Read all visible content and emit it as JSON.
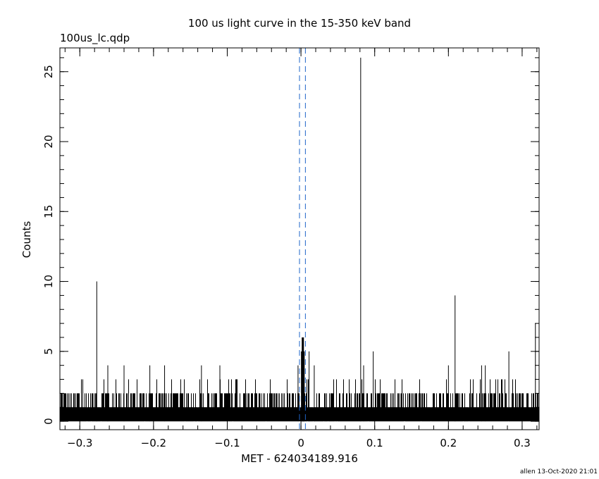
{
  "chart_data": {
    "type": "bar",
    "title": "100 us light curve in the 15-350 keV band",
    "file_label": "100us_lc.qdp",
    "xlabel": "MET - 624034189.916",
    "ylabel": "Counts",
    "xlim": [
      -0.327,
      0.323
    ],
    "ylim": [
      -0.6,
      26.7
    ],
    "xticks": [
      -0.3,
      -0.2,
      -0.1,
      0,
      0.1,
      0.2,
      0.3
    ],
    "xtick_labels": [
      "−0.3",
      "−0.2",
      "−0.1",
      "0",
      "0.1",
      "0.2",
      "0.3"
    ],
    "yticks": [
      0,
      5,
      10,
      15,
      20,
      25
    ],
    "ytick_labels": [
      "0",
      "5",
      "10",
      "15",
      "20",
      "25"
    ],
    "bin_width": 0.0001,
    "baseline_counts": [
      0,
      1,
      2
    ],
    "peaks": [
      {
        "x": -0.277,
        "y": 10
      },
      {
        "x": -0.262,
        "y": 4
      },
      {
        "x": -0.24,
        "y": 4
      },
      {
        "x": -0.205,
        "y": 4
      },
      {
        "x": -0.185,
        "y": 4
      },
      {
        "x": -0.135,
        "y": 4
      },
      {
        "x": -0.11,
        "y": 4
      },
      {
        "x": -0.004,
        "y": 4
      },
      {
        "x": 0.001,
        "y": 5
      },
      {
        "x": 0.002,
        "y": 6
      },
      {
        "x": 0.003,
        "y": 6
      },
      {
        "x": 0.004,
        "y": 5
      },
      {
        "x": 0.011,
        "y": 5
      },
      {
        "x": 0.018,
        "y": 4
      },
      {
        "x": 0.081,
        "y": 26
      },
      {
        "x": 0.085,
        "y": 4
      },
      {
        "x": 0.098,
        "y": 5
      },
      {
        "x": 0.2,
        "y": 4
      },
      {
        "x": 0.209,
        "y": 9
      },
      {
        "x": 0.245,
        "y": 4
      },
      {
        "x": 0.25,
        "y": 4
      },
      {
        "x": 0.282,
        "y": 5
      },
      {
        "x": 0.318,
        "y": 7
      }
    ],
    "vlines": [
      -0.002,
      0.006
    ],
    "vline_color": "#1e64c8",
    "grid": false
  },
  "footer": {
    "stamp": "allen 13-Oct-2020 21:01"
  }
}
